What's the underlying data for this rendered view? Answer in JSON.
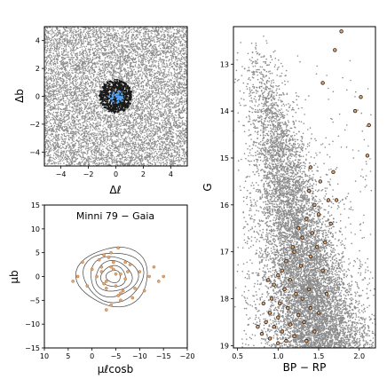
{
  "chart_data": [
    {
      "type": "scatter",
      "panel": "sky",
      "xlabel": "Δℓ",
      "ylabel": "Δb",
      "xlim": [
        -5.2,
        5.2
      ],
      "ylim": [
        -5.0,
        5.0
      ],
      "xticks": [
        -4,
        -2,
        0,
        2,
        4
      ],
      "xtick_labels": [
        "−4",
        "−2",
        "0",
        "2",
        "4"
      ],
      "yticks": [
        -4,
        -2,
        0,
        2,
        4
      ],
      "ytick_labels": [
        "−4",
        "−2",
        "0",
        "2",
        "4"
      ],
      "series": [
        {
          "role": "field stars",
          "color": "#8c8c8c",
          "distribution": "uniform",
          "x_range": [
            -5.2,
            5.2
          ],
          "y_range": [
            -5.0,
            5.0
          ],
          "count": 9000
        },
        {
          "role": "cluster region stars",
          "color": "#1a1a1a",
          "distribution": "disk",
          "center": [
            0,
            0
          ],
          "radius": 1.2,
          "count": 500
        },
        {
          "role": "cluster members",
          "color": "#4da6ff",
          "distribution": "disk",
          "center": [
            0,
            0
          ],
          "radius": 0.5,
          "count": 30
        }
      ],
      "colors": {
        "field": "#8c8c8c",
        "cluster": "#1a1a1a",
        "members": "#4da6ff"
      }
    },
    {
      "type": "scatter",
      "panel": "proper-motion",
      "title": "Minni 79  −  Gaia",
      "xlabel": "μℓcosb",
      "ylabel": "μb",
      "xlim": [
        10,
        -20
      ],
      "ylim": [
        -15,
        15
      ],
      "xticks": [
        10,
        5,
        0,
        -5,
        -10,
        -15,
        -20
      ],
      "xtick_labels": [
        "10",
        "5",
        "0",
        "−5",
        "−10",
        "−15",
        "−20"
      ],
      "yticks": [
        15,
        10,
        5,
        0,
        -5,
        -10,
        -15
      ],
      "ytick_labels": [
        "15",
        "10",
        "5",
        "0",
        "−5",
        "−10",
        "−15"
      ],
      "points": {
        "x": [
          -1,
          -2,
          -3,
          -4,
          -5,
          -6,
          -7,
          0,
          -2.5,
          -4.5,
          -6.5,
          -8,
          -9,
          -10,
          -12,
          -14,
          -3.5,
          -5.5,
          -7.5,
          1,
          3,
          -1.5,
          -4,
          -6,
          -8.5,
          -2,
          -3,
          -5,
          -7,
          -4,
          -5.5,
          -3,
          -6,
          -2.5,
          -4.5,
          -11,
          -13,
          -15,
          2,
          4
        ],
        "y": [
          0,
          1,
          -1,
          2,
          -2,
          0.5,
          -0.5,
          1.5,
          -1.5,
          3,
          -3,
          2.5,
          -2.5,
          1,
          0,
          -1,
          4,
          -4,
          1,
          -2,
          0,
          3.5,
          5,
          -5,
          -4.5,
          2,
          -2.5,
          0.5,
          3,
          -6,
          6,
          -7,
          -3.5,
          4.5,
          1.5,
          -3,
          2,
          0,
          3,
          -1
        ],
        "color": "#e8a56a"
      },
      "contours": {
        "center": [
          -4.5,
          0
        ],
        "semi_axes": [
          [
            1.5,
            1.3
          ],
          [
            2.6,
            2.2
          ],
          [
            3.8,
            3.2
          ],
          [
            5.0,
            4.2
          ],
          [
            6.3,
            5.2
          ],
          [
            7.5,
            6.2
          ]
        ],
        "color": "#444444"
      }
    },
    {
      "type": "scatter",
      "panel": "cmd",
      "xlabel": "BP − RP",
      "ylabel": "G",
      "xlim": [
        0.45,
        2.2
      ],
      "ylim": [
        19.05,
        12.2
      ],
      "xticks": [
        0.5,
        1.0,
        1.5,
        2.0
      ],
      "xtick_labels": [
        "0.5",
        "1.0",
        "1.5",
        "2.0"
      ],
      "yticks": [
        13,
        14,
        15,
        16,
        17,
        18,
        19
      ],
      "ytick_labels": [
        "13",
        "14",
        "15",
        "16",
        "17",
        "18",
        "19"
      ],
      "field": {
        "color": "#8c8c8c",
        "count": 9000
      },
      "members": {
        "color": "#e8a56a",
        "edge": "#222222",
        "g": [
          12.3,
          12.7,
          13.4,
          13.7,
          14.0,
          14.3,
          14.95,
          15.2,
          15.5,
          15.7,
          15.9,
          16.0,
          16.2,
          16.3,
          16.5,
          16.6,
          16.7,
          16.9,
          17.0,
          17.1,
          17.2,
          17.3,
          17.4,
          17.5,
          17.6,
          17.7,
          17.8,
          17.9,
          18.0,
          18.0,
          18.1,
          18.2,
          18.3,
          18.35,
          18.4,
          18.5,
          18.55,
          18.6,
          18.7,
          18.75,
          18.8,
          18.85,
          18.9,
          18.95,
          18.5,
          18.2,
          17.8,
          17.4,
          16.8,
          16.4,
          15.9,
          15.3,
          18.7,
          18.3,
          17.9,
          18.9,
          18.6,
          18.1,
          17.6,
          16.9
        ],
        "bp_rp": [
          1.78,
          1.7,
          1.55,
          2.02,
          1.95,
          2.12,
          2.1,
          1.4,
          1.52,
          1.38,
          1.62,
          1.45,
          1.5,
          1.35,
          1.25,
          1.42,
          1.3,
          1.18,
          1.2,
          1.4,
          1.1,
          1.28,
          1.05,
          1.0,
          1.15,
          0.95,
          1.08,
          1.22,
          0.92,
          1.3,
          1.02,
          1.12,
          0.9,
          1.25,
          1.0,
          0.85,
          1.15,
          0.95,
          1.05,
          0.8,
          1.2,
          0.9,
          1.1,
          1.0,
          1.32,
          1.4,
          1.38,
          1.55,
          1.58,
          1.65,
          1.72,
          1.68,
          1.45,
          1.5,
          1.6,
          1.35,
          0.75,
          0.82,
          0.88,
          1.48
        ]
      }
    }
  ]
}
